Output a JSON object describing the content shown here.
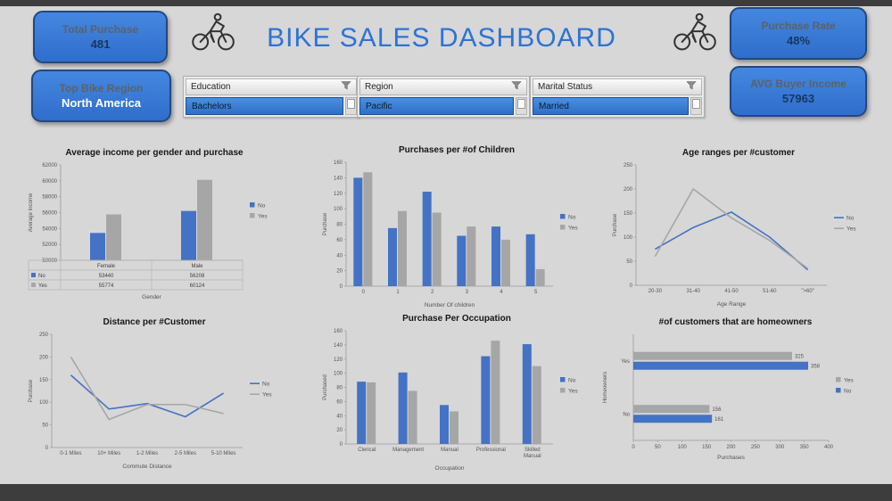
{
  "theme": {
    "background": "#d7d7d7",
    "strip_color": "#3d3d3d",
    "card_fill": "#3a7ad9",
    "card_border": "#24477f",
    "accent_blue": "#2d73d4",
    "series_blue": "#4472c4",
    "series_gray": "#a6a6a6"
  },
  "header": {
    "title": "BIKE SALES DASHBOARD",
    "cards": [
      {
        "label": "Total Purchase",
        "value": "481"
      },
      {
        "label": "Top Bike Region",
        "value": "North America"
      },
      {
        "label": "Purchase Rate",
        "value": "48%"
      },
      {
        "label": "AVG Buyer Income",
        "value": "57963"
      }
    ],
    "icons": {
      "left": "cyclist",
      "right": "cyclist"
    }
  },
  "slicers": [
    {
      "title": "Education",
      "icon": "filter-funnel",
      "selected": "Bachelors"
    },
    {
      "title": "Region",
      "icon": "filter-funnel",
      "selected": "Pacific"
    },
    {
      "title": "Marital Status",
      "icon": "filter-funnel",
      "selected": "Married"
    }
  ],
  "chart_data": [
    {
      "type": "bar-table",
      "title": "Average income per gender and purchase",
      "categories": [
        "Female",
        "Male"
      ],
      "series": [
        {
          "name": "No",
          "color": "#4472c4",
          "values": [
            53440,
            56208
          ]
        },
        {
          "name": "Yes",
          "color": "#a6a6a6",
          "values": [
            55774,
            60124
          ]
        }
      ],
      "xlabel": "Gender",
      "ylabel": "Average Income",
      "ylim": [
        50000,
        62000
      ],
      "ystep": 2000,
      "legend_position": "right",
      "grid": false
    },
    {
      "type": "bar",
      "title": "Purchases per #of Children",
      "categories": [
        "0",
        "1",
        "2",
        "3",
        "4",
        "5"
      ],
      "series": [
        {
          "name": "No",
          "color": "#4472c4",
          "values": [
            140,
            75,
            122,
            65,
            77,
            67
          ]
        },
        {
          "name": "Yes",
          "color": "#a6a6a6",
          "values": [
            147,
            97,
            95,
            77,
            60,
            22
          ]
        }
      ],
      "xlabel": "Number Of children",
      "ylabel": "Purchase",
      "ylim": [
        0,
        160
      ],
      "ystep": 20,
      "legend_position": "right",
      "grid": false
    },
    {
      "type": "line",
      "title": "Age ranges per #customer",
      "categories": [
        "20-30",
        "31-40",
        "41-50",
        "51-60",
        "\">60\""
      ],
      "series": [
        {
          "name": "No",
          "color": "#4472c4",
          "values": [
            75,
            120,
            152,
            100,
            32
          ]
        },
        {
          "name": "Yes",
          "color": "#a6a6a6",
          "values": [
            60,
            200,
            140,
            93,
            35
          ]
        }
      ],
      "xlabel": "Age Range",
      "ylabel": "Purchase",
      "ylim": [
        0,
        250
      ],
      "ystep": 50,
      "legend_position": "right",
      "grid": false
    },
    {
      "type": "line",
      "title": "Distance per #Customer",
      "categories": [
        "0-1 Miles",
        "10+ Miles",
        "1-2 Miles",
        "2-5 Miles",
        "5-10 Miles"
      ],
      "series": [
        {
          "name": "No",
          "color": "#4472c4",
          "values": [
            160,
            85,
            97,
            68,
            120
          ]
        },
        {
          "name": "Yes",
          "color": "#a6a6a6",
          "values": [
            200,
            62,
            95,
            95,
            75
          ]
        }
      ],
      "xlabel": "Commute Distance",
      "ylabel": "Purchase",
      "ylim": [
        0,
        250
      ],
      "ystep": 50,
      "legend_position": "right",
      "grid": false
    },
    {
      "type": "bar",
      "title": "Purchase Per Occupation",
      "categories": [
        "Clerical",
        "Management",
        "Manual",
        "Professional",
        "Skilled Manual"
      ],
      "series": [
        {
          "name": "No",
          "color": "#4472c4",
          "values": [
            88,
            101,
            55,
            124,
            141
          ]
        },
        {
          "name": "Yes",
          "color": "#a6a6a6",
          "values": [
            87,
            75,
            46,
            146,
            110
          ]
        }
      ],
      "xlabel": "Occupation",
      "ylabel": "Purchased",
      "ylim": [
        0,
        160
      ],
      "ystep": 20,
      "legend_position": "right",
      "grid": false
    },
    {
      "type": "barh",
      "title": "#of customers that are homeowners",
      "categories": [
        "Yes",
        "No"
      ],
      "series": [
        {
          "name": "Yes",
          "color": "#a6a6a6",
          "values": [
            325,
            156
          ]
        },
        {
          "name": "No",
          "color": "#4472c4",
          "values": [
            358,
            161
          ]
        }
      ],
      "xlabel": "Purchases",
      "ylabel": "Homeowners",
      "xlim": [
        0,
        400
      ],
      "xstep": 50,
      "data_labels": true,
      "legend_position": "right",
      "grid": false
    }
  ]
}
